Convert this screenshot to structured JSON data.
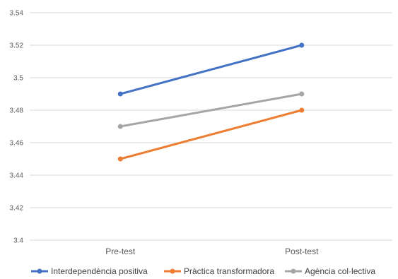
{
  "chart_data": {
    "type": "line",
    "title": "",
    "xlabel": "",
    "ylabel": "",
    "categories": [
      "Pre-test",
      "Post-test"
    ],
    "ylim": [
      3.4,
      3.54
    ],
    "yticks": [
      "3.4",
      "3.42",
      "3.44",
      "3.46",
      "3.48",
      "3.5",
      "3.52",
      "3.54"
    ],
    "grid": true,
    "legend_position": "bottom",
    "series": [
      {
        "name": "Interdependència positiva",
        "values": [
          3.49,
          3.52
        ],
        "color": "#4472c4"
      },
      {
        "name": "Pràctica transformadora",
        "values": [
          3.45,
          3.48
        ],
        "color": "#ed7d31"
      },
      {
        "name": "Agència col·lectiva",
        "values": [
          3.47,
          3.49
        ],
        "color": "#a5a5a5"
      }
    ]
  }
}
